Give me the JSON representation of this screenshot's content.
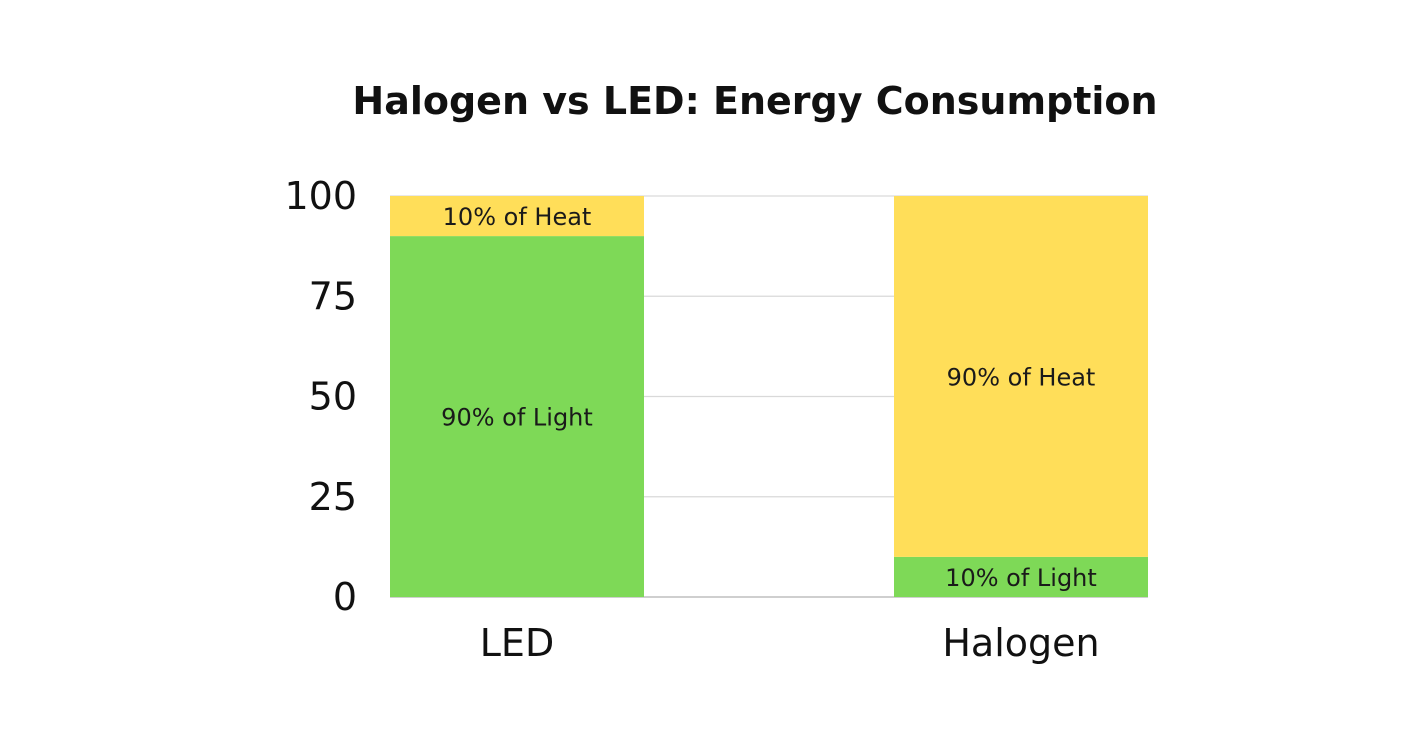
{
  "chart_data": {
    "type": "bar",
    "stacked": true,
    "title": "Halogen vs LED: Energy Consumption",
    "xlabel": "",
    "ylabel": "",
    "categories": [
      "LED",
      "Halogen"
    ],
    "ylim": [
      0,
      100
    ],
    "yticks": [
      "0",
      "25",
      "50",
      "75",
      "100"
    ],
    "grid": true,
    "series": [
      {
        "color": "#7ED957",
        "values": [
          90,
          10
        ],
        "labels": [
          "90% of Light",
          "10% of Light"
        ]
      },
      {
        "color": "#FFDE59",
        "values": [
          10,
          90
        ],
        "labels": [
          "10% of Heat",
          "90% of Heat"
        ]
      }
    ]
  }
}
